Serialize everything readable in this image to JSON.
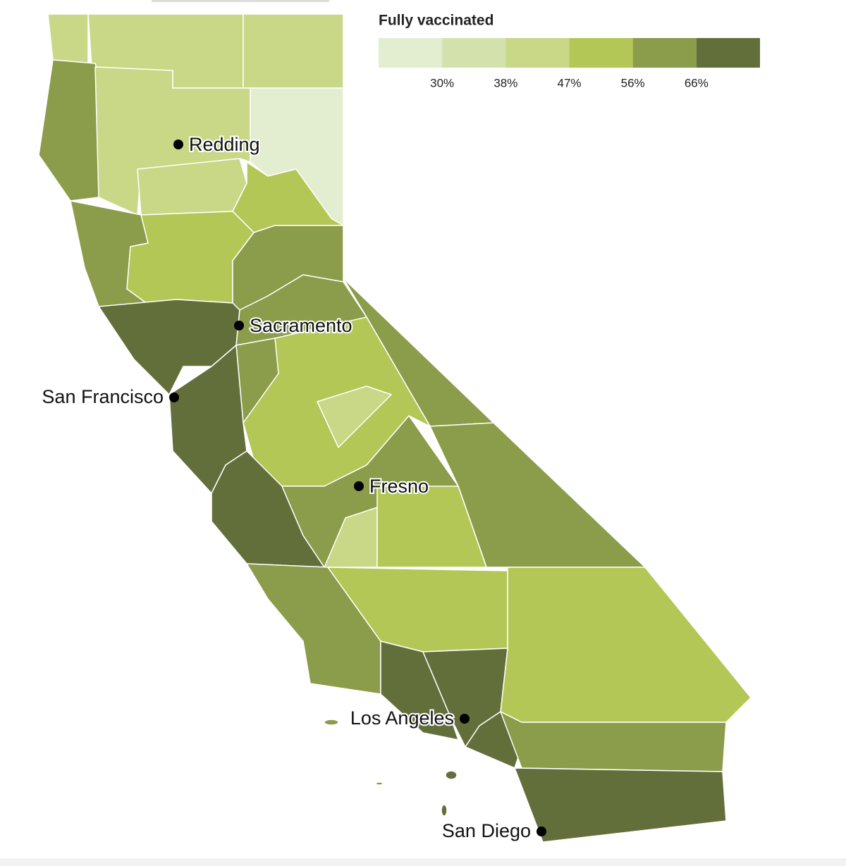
{
  "legend": {
    "title": "Fully vaccinated",
    "colors": [
      "#e3edcf",
      "#d3e1ad",
      "#c8d887",
      "#b3c757",
      "#8b9c4a",
      "#636f3b"
    ],
    "ticks": [
      {
        "value": 30,
        "label": "30%"
      },
      {
        "value": 38,
        "label": "38%"
      },
      {
        "value": 47,
        "label": "47%"
      },
      {
        "value": 56,
        "label": "56%"
      },
      {
        "value": 66,
        "label": "66%"
      }
    ]
  },
  "cities": [
    "Redding",
    "Sacramento",
    "San Francisco",
    "Fresno",
    "Los Angeles",
    "San Diego"
  ]
}
